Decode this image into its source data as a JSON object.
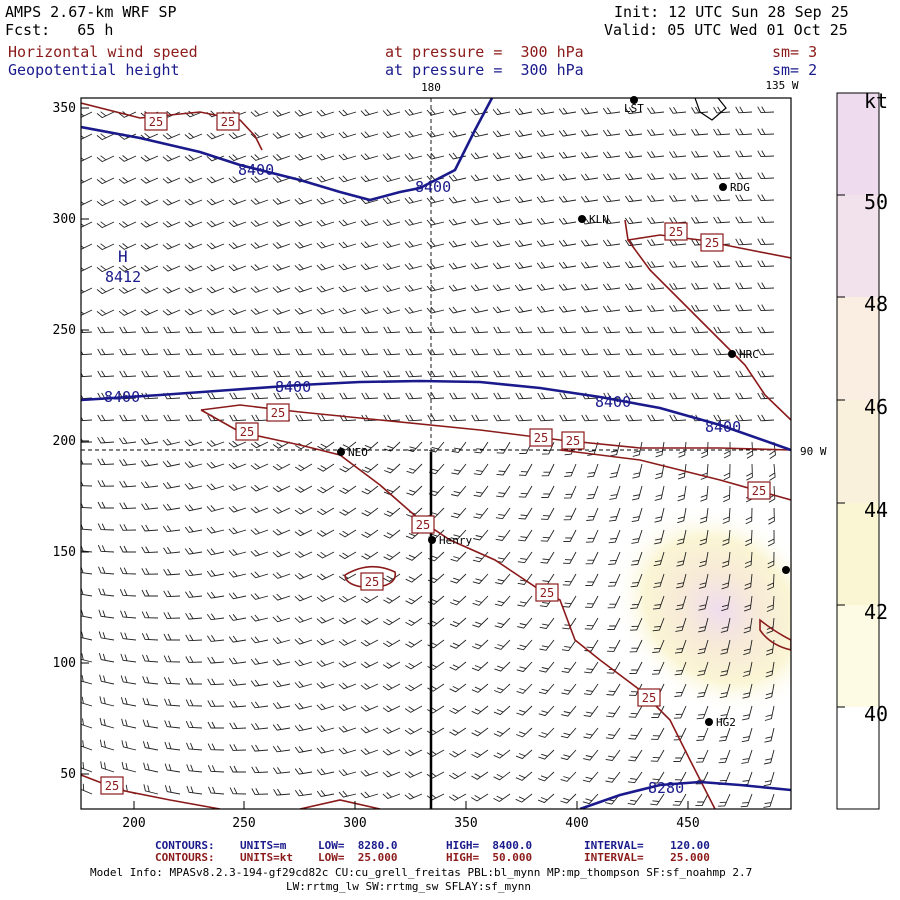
{
  "header": {
    "model": "AMPS 2.67-km WRF SP",
    "fcst": "Fcst:   65 h",
    "init": "Init: 12 UTC Sun 28 Sep 25",
    "valid": "Valid: 05 UTC Wed 01 Oct 25",
    "field1": "Horizontal wind speed",
    "field1_level": "at pressure =  300 hPa",
    "field1_sm": "sm= 3",
    "field2": "Geopotential height",
    "field2_level": "at pressure =  300 hPa",
    "field2_sm": "sm= 2"
  },
  "map": {
    "x_ticks": [
      "200",
      "250",
      "300",
      "350",
      "400",
      "450"
    ],
    "y_ticks": [
      "350",
      "300",
      "250",
      "200",
      "150",
      "100",
      "50"
    ],
    "meridian_180": "180",
    "meridian_135w": "135 W",
    "meridian_90w": "90 W",
    "stations": [
      {
        "id": "RDG",
        "label": "RDG"
      },
      {
        "id": "KLN",
        "label": "KLN"
      },
      {
        "id": "HRC",
        "label": "HRC"
      },
      {
        "id": "NEO",
        "label": "NEO"
      },
      {
        "id": "Henry",
        "label": "Henry"
      },
      {
        "id": "HG2",
        "label": "HG2"
      },
      {
        "id": "LST",
        "label": "LST"
      }
    ],
    "height_contours": [
      "8400",
      "8400",
      "8400",
      "8400",
      "8400",
      "8280"
    ],
    "high_marker": "H",
    "high_value": "8412",
    "wind_contour_label": "25"
  },
  "colorbar": {
    "unit": "kt",
    "labels": [
      "50",
      "48",
      "46",
      "44",
      "42",
      "40"
    ],
    "colors": [
      "#f0dff0",
      "#ead4ea",
      "#faf0e8",
      "#f8f2de",
      "#faf7d2",
      "#fdfce8"
    ]
  },
  "footer": {
    "contours_label": "CONTOURS:",
    "c1_units": "UNITS=m",
    "c1_low": "LOW=  8280.0",
    "c1_high": "HIGH=  8400.0",
    "c1_interval": "INTERVAL=    120.00",
    "c2_units": "UNITS=kt",
    "c2_low": "LOW=  25.000",
    "c2_high": "HIGH=  50.000",
    "c2_interval": "INTERVAL=    25.000",
    "model_info": "Model Info: MPASv8.2.3-194-gf29cd82c CU:cu_grell_freitas PBL:bl_mynn MP:mp_thompson SF:sf_noahmp 2.7",
    "model_info2": "LW:rrtmg_lw SW:rrtmg_sw SFLAY:sf_mynn"
  }
}
